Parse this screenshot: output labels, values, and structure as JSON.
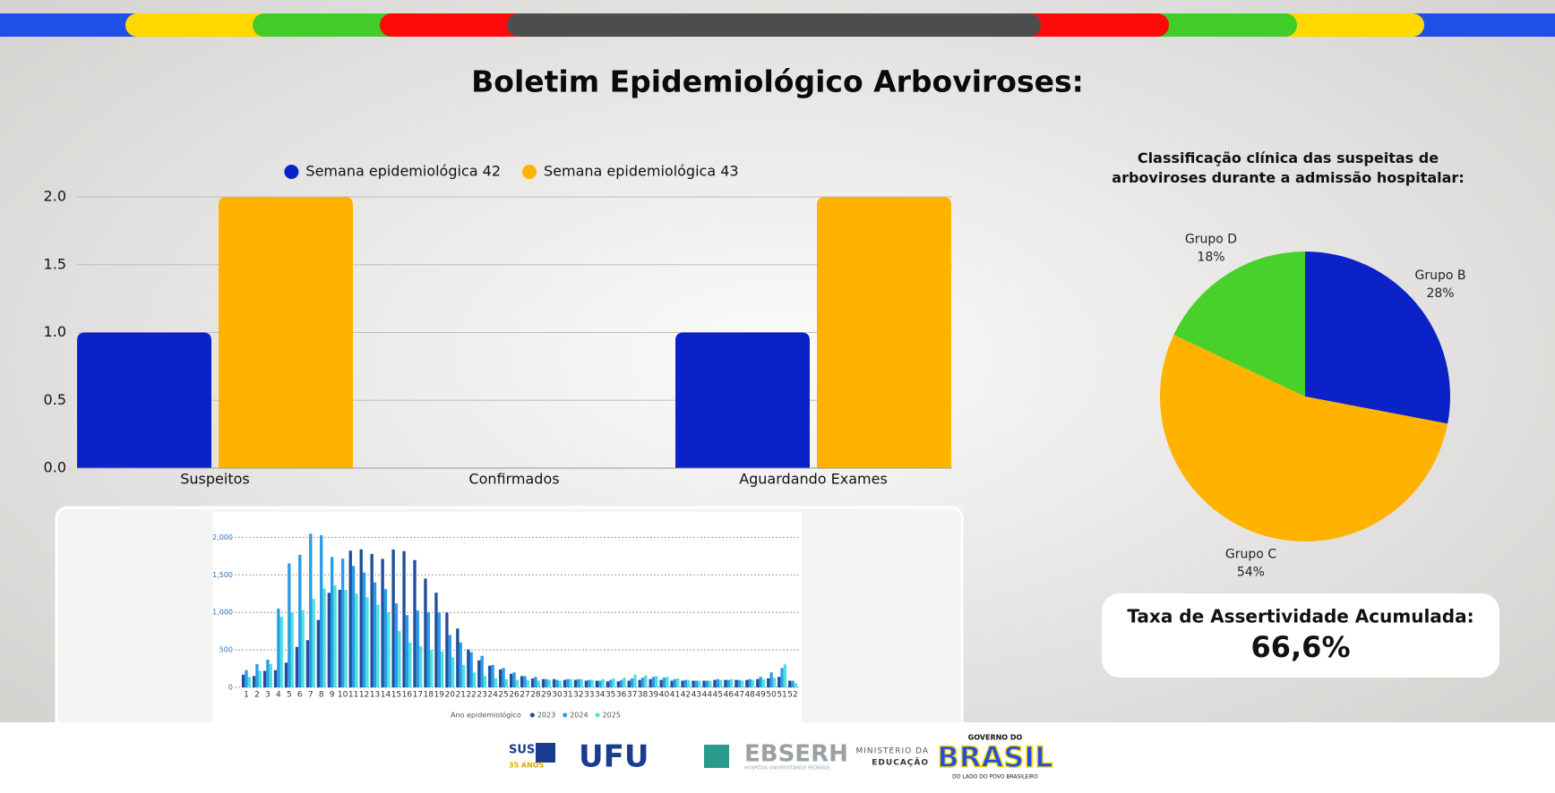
{
  "header": {
    "title": "Boletim Epidemiológico Arboviroses:"
  },
  "chart_data": [
    {
      "type": "bar",
      "categories": [
        "Suspeitos",
        "Confirmados",
        "Aguardando Exames"
      ],
      "series": [
        {
          "name": "Semana epidemiológica 42",
          "color": "#0b22c9",
          "values": [
            1,
            0,
            1
          ]
        },
        {
          "name": "Semana epidemiológica 43",
          "color": "#ffb300",
          "values": [
            2,
            0,
            2
          ]
        }
      ],
      "ylim": [
        0,
        2
      ],
      "yticks": [
        {
          "value": 0,
          "label": "0.0"
        },
        {
          "value": 0.5,
          "label": "0.5"
        },
        {
          "value": 1,
          "label": "1.0"
        },
        {
          "value": 1.5,
          "label": "1.5"
        },
        {
          "value": 2,
          "label": "2.0"
        }
      ],
      "grid": true,
      "legend": "top"
    },
    {
      "type": "pie",
      "title": "Classificação clínica das suspeitas de arboviroses durante a admissão hospitalar:",
      "categories": [
        "Grupo B",
        "Grupo C",
        "Grupo D"
      ],
      "values": [
        28,
        54,
        18
      ],
      "value_labels": [
        "28%",
        "54%",
        "18%"
      ],
      "colors": [
        "#0b22c9",
        "#ffb300",
        "#48d12a"
      ]
    },
    {
      "type": "bar",
      "legend_title": "Ano epidemiológico",
      "categories": [
        1,
        2,
        3,
        4,
        5,
        6,
        7,
        8,
        9,
        10,
        11,
        12,
        13,
        14,
        15,
        16,
        17,
        18,
        19,
        20,
        21,
        22,
        23,
        24,
        25,
        26,
        27,
        28,
        29,
        30,
        31,
        32,
        33,
        34,
        35,
        36,
        37,
        38,
        39,
        40,
        41,
        42,
        43,
        44,
        45,
        46,
        47,
        48,
        49,
        50,
        51,
        52
      ],
      "series": [
        {
          "name": "2023",
          "color": "#1f4e9c",
          "values": [
            168,
            150,
            220,
            230,
            330,
            540,
            630,
            900,
            1260,
            1300,
            1823,
            1840,
            1780,
            1714,
            1839,
            1817,
            1697,
            1451,
            1262,
            999,
            784,
            506,
            360,
            290,
            240,
            180,
            150,
            120,
            110,
            110,
            100,
            100,
            90,
            90,
            80,
            80,
            90,
            100,
            110,
            100,
            90,
            90,
            90,
            90,
            100,
            100,
            100,
            100,
            110,
            120,
            140,
            90
          ]
        },
        {
          "name": "2024",
          "color": "#2a9be8",
          "values": [
            230,
            310,
            370,
            1050,
            1652,
            1768,
            2049,
            2028,
            1738,
            1717,
            1620,
            1530,
            1400,
            1310,
            1119,
            964,
            1024,
            1000,
            1000,
            700,
            600,
            470,
            420,
            300,
            260,
            200,
            150,
            140,
            110,
            100,
            110,
            110,
            100,
            90,
            100,
            100,
            120,
            130,
            140,
            130,
            110,
            100,
            90,
            90,
            110,
            100,
            100,
            110,
            140,
            200,
            257,
            90
          ]
        },
        {
          "name": "2025",
          "color": "#4de0e0",
          "values": [
            140,
            220,
            310,
            940,
            1000,
            1030,
            1180,
            1320,
            1360,
            1300,
            1250,
            1200,
            1100,
            1000,
            750,
            600,
            550,
            500,
            480,
            400,
            300,
            200,
            150,
            120,
            110,
            100,
            100,
            90,
            100,
            90,
            110,
            110,
            100,
            110,
            120,
            130,
            170,
            160,
            150,
            140,
            120,
            100,
            90,
            90,
            100,
            110,
            90,
            100,
            110,
            130,
            307,
            54
          ]
        }
      ],
      "ylim": [
        0,
        2100
      ],
      "yticks": [
        0,
        500,
        {
          "value": 1000,
          "label": "1,000"
        },
        {
          "value": 1500,
          "label": "1,500"
        },
        {
          "value": 2000,
          "label": "2,000"
        }
      ],
      "grid": true,
      "legend": "bottom"
    }
  ],
  "card": {
    "label": "Taxa de Assertividade Acumulada:",
    "value": "66,6%"
  },
  "footer": {
    "sus": "SUS",
    "sus_years": "35 ANOS",
    "ufu": "UFU",
    "ebserh": "EBSERH",
    "ebserh_sub": "HOSPITAIS UNIVERSITÁRIOS FEDERAIS",
    "mec_line1": "MINISTÉRIO DA",
    "mec_line2": "EDUCAÇÃO",
    "gov_top": "GOVERNO DO",
    "gov_main": "BRASIL",
    "gov_bottom": "DO LADO DO POVO BRASILEIRO"
  }
}
